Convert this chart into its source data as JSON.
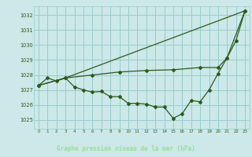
{
  "title": "Graphe pression niveau de la mer (hPa)",
  "bg_color": "#cce8e8",
  "plot_bg": "#cce8e8",
  "grid_color": "#99cccc",
  "line_color": "#2d5a1b",
  "title_bg": "#336633",
  "title_fg": "#99dd99",
  "xlim": [
    -0.5,
    23.5
  ],
  "ylim": [
    1024.4,
    1032.6
  ],
  "yticks": [
    1025,
    1026,
    1027,
    1028,
    1029,
    1030,
    1031,
    1032
  ],
  "xticks": [
    0,
    1,
    2,
    3,
    4,
    5,
    6,
    7,
    8,
    9,
    10,
    11,
    12,
    13,
    14,
    15,
    16,
    17,
    18,
    19,
    20,
    21,
    22,
    23
  ],
  "line1_x": [
    0,
    1,
    2,
    3,
    4,
    5,
    6,
    7,
    8,
    9,
    10,
    11,
    12,
    13,
    14,
    15,
    16,
    17,
    18,
    19,
    20,
    21,
    22,
    23
  ],
  "line1_y": [
    1027.3,
    1027.8,
    1027.6,
    1027.8,
    1027.2,
    1027.0,
    1026.85,
    1026.9,
    1026.55,
    1026.55,
    1026.1,
    1026.1,
    1026.05,
    1025.85,
    1025.85,
    1025.1,
    1025.4,
    1026.3,
    1026.2,
    1027.0,
    1028.1,
    1029.15,
    1030.3,
    1032.3
  ],
  "line2_x": [
    0,
    3,
    23
  ],
  "line2_y": [
    1027.3,
    1027.8,
    1032.3
  ],
  "line3_x": [
    0,
    3,
    6,
    9,
    12,
    15,
    18,
    20,
    21,
    23
  ],
  "line3_y": [
    1027.3,
    1027.8,
    1028.0,
    1028.2,
    1028.3,
    1028.35,
    1028.5,
    1028.5,
    1029.15,
    1032.3
  ]
}
